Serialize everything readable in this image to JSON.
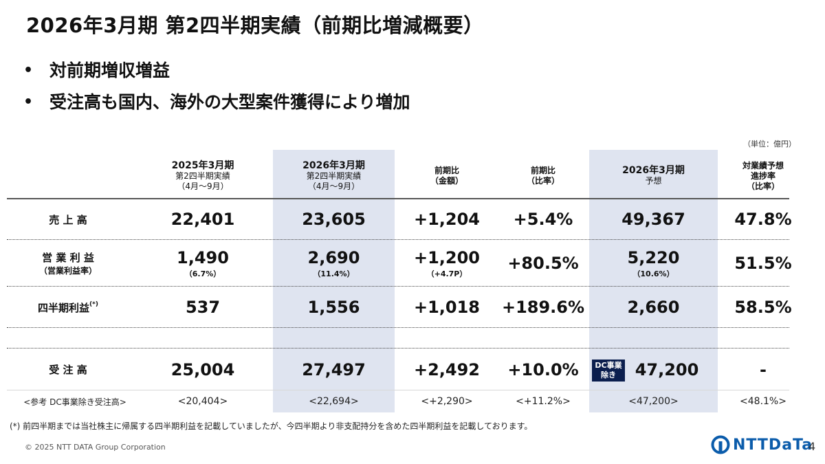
{
  "title": "2026年3月期 第2四半期実績（前期比増減概要）",
  "bullets": [
    "対前期増収増益",
    "受注高も国内、海外の大型案件獲得により増加"
  ],
  "unit": "（単位：億円）",
  "columns": [
    {
      "l1": "2025年3月期",
      "l2": "第2四半期実績",
      "l3": "（4月～9月）"
    },
    {
      "l1": "2026年3月期",
      "l2": "第2四半期実績",
      "l3": "（4月～9月）"
    },
    {
      "l1": "前期比",
      "l2": "（金額）"
    },
    {
      "l1": "前期比",
      "l2": "（比率）"
    },
    {
      "l1": "2026年3月期",
      "l2": "予想"
    },
    {
      "l1": "対業績予想",
      "l2": "進捗率",
      "l3": "（比率）"
    }
  ],
  "rows": {
    "sales": {
      "label": "売 上 高",
      "values": [
        "22,401",
        "23,605",
        "+1,204",
        "+5.4%",
        "49,367",
        "47.8%"
      ]
    },
    "operating": {
      "label": "営 業 利 益",
      "sublabel": "（営業利益率）",
      "values": [
        "1,490",
        "2,690",
        "+1,200",
        "+80.5%",
        "5,220",
        "51.5%"
      ],
      "subs": [
        "（6.7%）",
        "（11.4%）",
        "（+4.7P）",
        "",
        "（10.6%）",
        ""
      ]
    },
    "quarterly": {
      "label": "四半期利益",
      "mark": "(*)",
      "values": [
        "537",
        "1,556",
        "+1,018",
        "+189.6%",
        "2,660",
        "58.5%"
      ]
    },
    "orders": {
      "label": "受 注 高",
      "values": [
        "25,004",
        "27,497",
        "+2,492",
        "+10.0%",
        "47,200",
        "-"
      ],
      "badge1": "DC事業",
      "badge2": "除き"
    },
    "reference": {
      "label": "<参考 DC事業除き受注高>",
      "values": [
        "<20,404>",
        "<22,694>",
        "<+2,290>",
        "<+11.2%>",
        "<47,200>",
        "<48.1%>"
      ]
    }
  },
  "footnote": "(*) 前四半期までは当社株主に帰属する四半期利益を記載していましたが、今四半期より非支配持分を含めた四半期利益を記載しております。",
  "copyright": "© 2025 NTT DATA Group Corporation",
  "logo_text": "NTTDaTa",
  "page_number": "4",
  "colors": {
    "shade": "#dfe4f0",
    "badge": "#0b1e4e",
    "logo": "#0b5cab"
  }
}
